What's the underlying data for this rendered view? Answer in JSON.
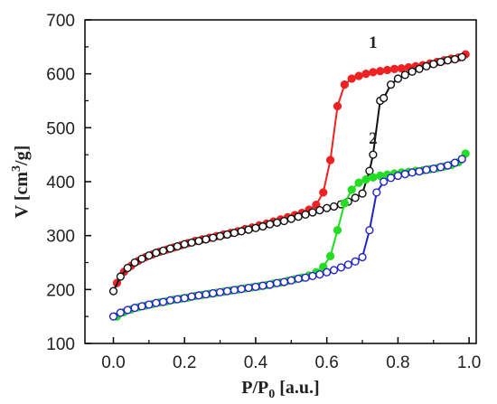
{
  "chart_data": {
    "type": "scatter",
    "xlabel_base": "P/P",
    "xlabel_sub": "0",
    "xlabel_unit": " [a.u.]",
    "ylabel_prefix": "V [cm",
    "ylabel_sup": "3",
    "ylabel_suffix": "/g]",
    "xlim": [
      -0.08,
      1.02
    ],
    "ylim": [
      100,
      700
    ],
    "xticks": [
      "0.0",
      "0.2",
      "0.4",
      "0.6",
      "0.8",
      "1.0"
    ],
    "xtick_values": [
      0,
      0.2,
      0.4,
      0.6,
      0.8,
      1.0
    ],
    "yticks": [
      "100",
      "200",
      "300",
      "400",
      "500",
      "600",
      "700"
    ],
    "ytick_values": [
      100,
      200,
      300,
      400,
      500,
      600,
      700
    ],
    "annotations": [
      {
        "text": "1",
        "x": 0.73,
        "y": 648
      },
      {
        "text": "2",
        "x": 0.73,
        "y": 470
      }
    ],
    "series": [
      {
        "curve": "1",
        "branch": "desorption",
        "color": "#ee2222",
        "marker": "filled",
        "x": [
          0.01,
          0.03,
          0.05,
          0.07,
          0.09,
          0.11,
          0.13,
          0.15,
          0.17,
          0.19,
          0.21,
          0.23,
          0.25,
          0.27,
          0.29,
          0.31,
          0.33,
          0.35,
          0.37,
          0.39,
          0.41,
          0.43,
          0.45,
          0.47,
          0.49,
          0.51,
          0.53,
          0.55,
          0.57,
          0.59,
          0.61,
          0.63,
          0.65,
          0.67,
          0.69,
          0.71,
          0.73,
          0.75,
          0.77,
          0.79,
          0.81,
          0.83,
          0.85,
          0.87,
          0.89,
          0.91,
          0.93,
          0.95,
          0.97,
          0.99
        ],
        "y": [
          212,
          233,
          244,
          253,
          260,
          265,
          270,
          274,
          278,
          282,
          286,
          290,
          293,
          296,
          299,
          302,
          305,
          308,
          312,
          315,
          319,
          322,
          326,
          330,
          334,
          338,
          342,
          348,
          357,
          380,
          440,
          540,
          580,
          591,
          596,
          600,
          603,
          605,
          607,
          609,
          610,
          612,
          614,
          616,
          619,
          622,
          625,
          628,
          630,
          636
        ]
      },
      {
        "curve": "1",
        "branch": "adsorption",
        "color": "#111111",
        "marker": "open",
        "x": [
          0.0,
          0.02,
          0.04,
          0.06,
          0.08,
          0.1,
          0.12,
          0.14,
          0.16,
          0.18,
          0.2,
          0.22,
          0.24,
          0.26,
          0.28,
          0.3,
          0.32,
          0.34,
          0.36,
          0.38,
          0.4,
          0.42,
          0.44,
          0.46,
          0.48,
          0.5,
          0.52,
          0.54,
          0.56,
          0.58,
          0.6,
          0.62,
          0.64,
          0.66,
          0.68,
          0.7,
          0.72,
          0.73,
          0.75,
          0.76,
          0.78,
          0.8,
          0.82,
          0.84,
          0.86,
          0.88,
          0.9,
          0.92,
          0.94,
          0.96,
          0.98
        ],
        "y": [
          197,
          224,
          240,
          250,
          257,
          263,
          268,
          272,
          276,
          280,
          284,
          287,
          290,
          293,
          296,
          299,
          302,
          305,
          308,
          311,
          314,
          317,
          321,
          324,
          327,
          331,
          335,
          339,
          343,
          347,
          351,
          354,
          358,
          363,
          370,
          378,
          420,
          450,
          550,
          555,
          580,
          591,
          598,
          604,
          609,
          614,
          618,
          622,
          625,
          627,
          631
        ]
      },
      {
        "curve": "2",
        "branch": "desorption",
        "color": "#22dd22",
        "marker": "filled",
        "x": [
          0.01,
          0.03,
          0.05,
          0.07,
          0.09,
          0.11,
          0.13,
          0.15,
          0.17,
          0.19,
          0.21,
          0.23,
          0.25,
          0.27,
          0.29,
          0.31,
          0.33,
          0.35,
          0.37,
          0.39,
          0.41,
          0.43,
          0.45,
          0.47,
          0.49,
          0.51,
          0.53,
          0.55,
          0.57,
          0.59,
          0.61,
          0.63,
          0.65,
          0.67,
          0.69,
          0.71,
          0.73,
          0.75,
          0.77,
          0.79,
          0.81,
          0.83,
          0.85,
          0.87,
          0.89,
          0.91,
          0.93,
          0.95,
          0.97,
          0.99
        ],
        "y": [
          150,
          158,
          163,
          167,
          170,
          173,
          176,
          178,
          181,
          183,
          185,
          188,
          190,
          192,
          194,
          196,
          198,
          200,
          202,
          204,
          206,
          208,
          211,
          213,
          216,
          219,
          222,
          226,
          232,
          242,
          262,
          310,
          360,
          385,
          398,
          404,
          408,
          411,
          413,
          415,
          417,
          418,
          420,
          421,
          423,
          425,
          428,
          431,
          436,
          452
        ]
      },
      {
        "curve": "2",
        "branch": "adsorption",
        "color": "#2222cc",
        "marker": "open",
        "x": [
          0.0,
          0.02,
          0.04,
          0.06,
          0.08,
          0.1,
          0.12,
          0.14,
          0.16,
          0.18,
          0.2,
          0.22,
          0.24,
          0.26,
          0.28,
          0.3,
          0.32,
          0.34,
          0.36,
          0.38,
          0.4,
          0.42,
          0.44,
          0.46,
          0.48,
          0.5,
          0.52,
          0.54,
          0.56,
          0.58,
          0.6,
          0.62,
          0.64,
          0.66,
          0.68,
          0.7,
          0.72,
          0.74,
          0.76,
          0.78,
          0.8,
          0.82,
          0.84,
          0.86,
          0.88,
          0.9,
          0.92,
          0.94,
          0.96,
          0.98
        ],
        "y": [
          150,
          157,
          162,
          166,
          169,
          172,
          175,
          177,
          180,
          182,
          184,
          187,
          189,
          191,
          193,
          195,
          197,
          199,
          201,
          203,
          205,
          207,
          209,
          212,
          214,
          217,
          220,
          222,
          225,
          228,
          232,
          236,
          241,
          246,
          252,
          260,
          310,
          380,
          400,
          407,
          411,
          414,
          417,
          419,
          422,
          424,
          427,
          430,
          435,
          442
        ]
      }
    ]
  }
}
